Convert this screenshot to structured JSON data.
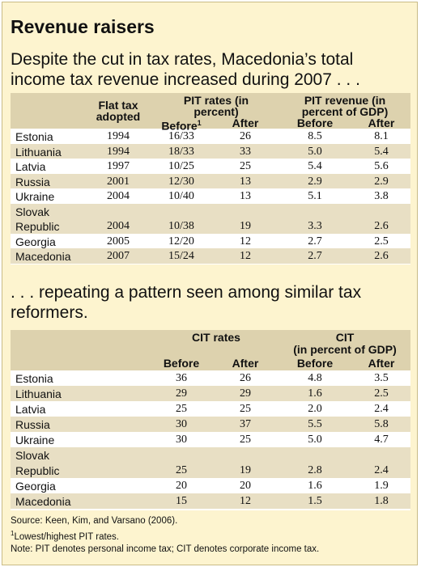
{
  "title": "Revenue raisers",
  "subtitle_top": "Despite the cut in tax rates, Macedonia’s total income tax revenue increased during 2007 . . .",
  "subtitle_bottom": ". . . repeating a pattern seen among similar tax reformers.",
  "pit_table": {
    "headers": {
      "flat_tax": "Flat tax adopted",
      "pit_rates": "PIT rates (in percent)",
      "pit_revenue": "PIT revenue (in percent of GDP)",
      "before": "Before",
      "before_note": "1",
      "after": "After"
    },
    "rows": [
      {
        "country": "Estonia",
        "year": "1994",
        "rate_before": "16/33",
        "rate_after": "26",
        "rev_before": "8.5",
        "rev_after": "8.1"
      },
      {
        "country": "Lithuania",
        "year": "1994",
        "rate_before": "18/33",
        "rate_after": "33",
        "rev_before": "5.0",
        "rev_after": "5.4"
      },
      {
        "country": "Latvia",
        "year": "1997",
        "rate_before": "10/25",
        "rate_after": "25",
        "rev_before": "5.4",
        "rev_after": "5.6"
      },
      {
        "country": "Russia",
        "year": "2001",
        "rate_before": "12/30",
        "rate_after": "13",
        "rev_before": "2.9",
        "rev_after": "2.9"
      },
      {
        "country": "Ukraine",
        "year": "2004",
        "rate_before": "10/40",
        "rate_after": "13",
        "rev_before": "5.1",
        "rev_after": "3.8"
      },
      {
        "country": "Slovak Republic",
        "year": "2004",
        "rate_before": "10/38",
        "rate_after": "19",
        "rev_before": "3.3",
        "rev_after": "2.6"
      },
      {
        "country": "Georgia",
        "year": "2005",
        "rate_before": "12/20",
        "rate_after": "12",
        "rev_before": "2.7",
        "rev_after": "2.5"
      },
      {
        "country": "Macedonia",
        "year": "2007",
        "rate_before": "15/24",
        "rate_after": "12",
        "rev_before": "2.7",
        "rev_after": "2.6"
      }
    ]
  },
  "cit_table": {
    "headers": {
      "cit_rates": "CIT rates",
      "cit": "CIT",
      "cit_unit": "(in percent of GDP)",
      "before": "Before",
      "after": "After"
    },
    "rows": [
      {
        "country": "Estonia",
        "rate_before": "36",
        "rate_after": "26",
        "rev_before": "4.8",
        "rev_after": "3.5"
      },
      {
        "country": "Lithuania",
        "rate_before": "29",
        "rate_after": "29",
        "rev_before": "1.6",
        "rev_after": "2.5"
      },
      {
        "country": "Latvia",
        "rate_before": "25",
        "rate_after": "25",
        "rev_before": "2.0",
        "rev_after": "2.4"
      },
      {
        "country": "Russia",
        "rate_before": "30",
        "rate_after": "37",
        "rev_before": "5.5",
        "rev_after": "5.8"
      },
      {
        "country": "Ukraine",
        "rate_before": "30",
        "rate_after": "25",
        "rev_before": "5.0",
        "rev_after": "4.7"
      },
      {
        "country": "Slovak Republic",
        "rate_before": "25",
        "rate_after": "19",
        "rev_before": "2.8",
        "rev_after": "2.4"
      },
      {
        "country": "Georgia",
        "rate_before": "20",
        "rate_after": "20",
        "rev_before": "1.6",
        "rev_after": "1.9"
      },
      {
        "country": "Macedonia",
        "rate_before": "15",
        "rate_after": "12",
        "rev_before": "1.5",
        "rev_after": "1.8"
      }
    ]
  },
  "notes": {
    "source": "Source: Keen, Kim, and Varsano (2006).",
    "footnote_mark": "1",
    "footnote": "Lowest/highest PIT rates.",
    "note": "Note: PIT denotes personal income tax; CIT denotes corporate income tax."
  },
  "colors": {
    "panel_bg": "#fdf4cf",
    "header_bg": "#ddd2ae",
    "stripe_bg": "#e8dfc4"
  }
}
